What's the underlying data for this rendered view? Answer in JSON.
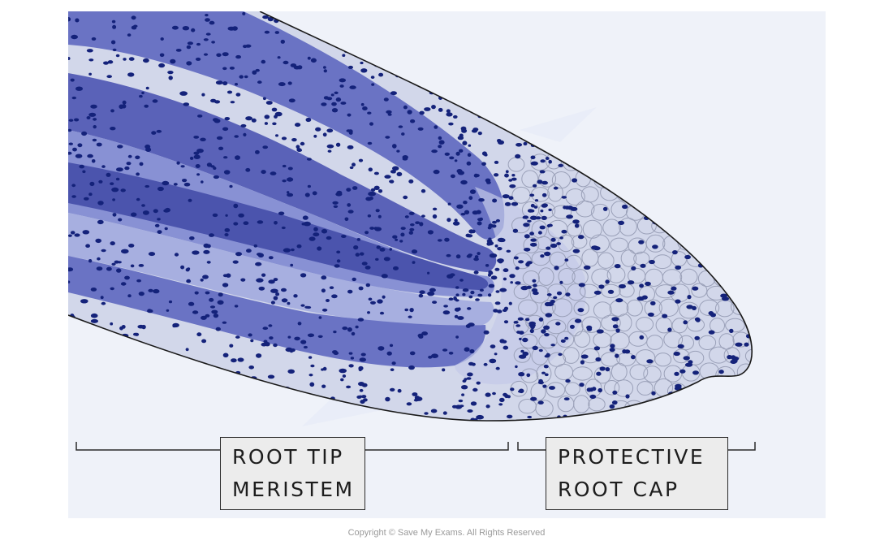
{
  "labels": {
    "meristem": {
      "line1": "ROOT  TIP",
      "line2": "MERISTEM"
    },
    "root_cap": {
      "line1": "PROTECTIVE",
      "line2": "ROOT  CAP"
    }
  },
  "copyright": "Copyright © Save My Exams. All Rights Reserved",
  "colors": {
    "panel_background": "#eff2f9",
    "root_outer": "#d2d7ea",
    "tissue_light": "#a7afe0",
    "tissue_mid": "#7f88cf",
    "tissue_dark": "#5a62b8",
    "nuclei": "#14227a",
    "outline": "#1a1a1a",
    "cap_cells": "#9aa0b8"
  }
}
